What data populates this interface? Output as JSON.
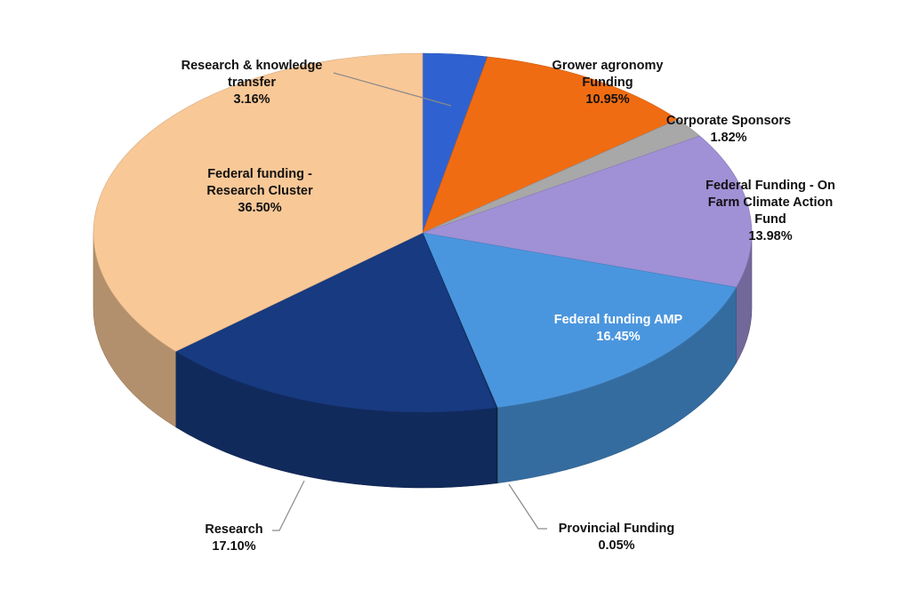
{
  "chart_data": {
    "type": "pie",
    "style": "3d",
    "legend": "none",
    "slices": [
      {
        "name": "Research & knowledge transfer",
        "label_lines": [
          "Research & knowledge",
          "transfer"
        ],
        "value": 3.16,
        "value_label": "3.16%",
        "color": "#2f62d0"
      },
      {
        "name": "Grower agronomy Funding",
        "label_lines": [
          "Grower agronomy",
          "Funding"
        ],
        "value": 10.95,
        "value_label": "10.95%",
        "color": "#f06c12"
      },
      {
        "name": "Corporate Sponsors",
        "label_lines": [
          "Corporate Sponsors"
        ],
        "value": 1.82,
        "value_label": "1.82%",
        "color": "#a8a8a8"
      },
      {
        "name": "Federal Funding -  On Farm Climate Action Fund",
        "label_lines": [
          "Federal Funding -  On",
          "Farm Climate Action",
          "Fund"
        ],
        "value": 13.98,
        "value_label": "13.98%",
        "color": "#a090d6"
      },
      {
        "name": "Federal funding AMP",
        "label_lines": [
          "Federal funding AMP"
        ],
        "value": 16.45,
        "value_label": "16.45%",
        "color": "#4a96de"
      },
      {
        "name": "Provincial Funding",
        "label_lines": [
          "Provincial Funding"
        ],
        "value": 0.05,
        "value_label": "0.05%",
        "color": "#1a2f4f"
      },
      {
        "name": "Research",
        "label_lines": [
          "Research"
        ],
        "value": 17.1,
        "value_label": "17.10%",
        "color": "#173a80"
      },
      {
        "name": "Federal funding - Research Cluster",
        "label_lines": [
          "Federal funding -",
          "Research Cluster"
        ],
        "value": 36.5,
        "value_label": "36.50%",
        "color": "#f9c897"
      }
    ]
  }
}
